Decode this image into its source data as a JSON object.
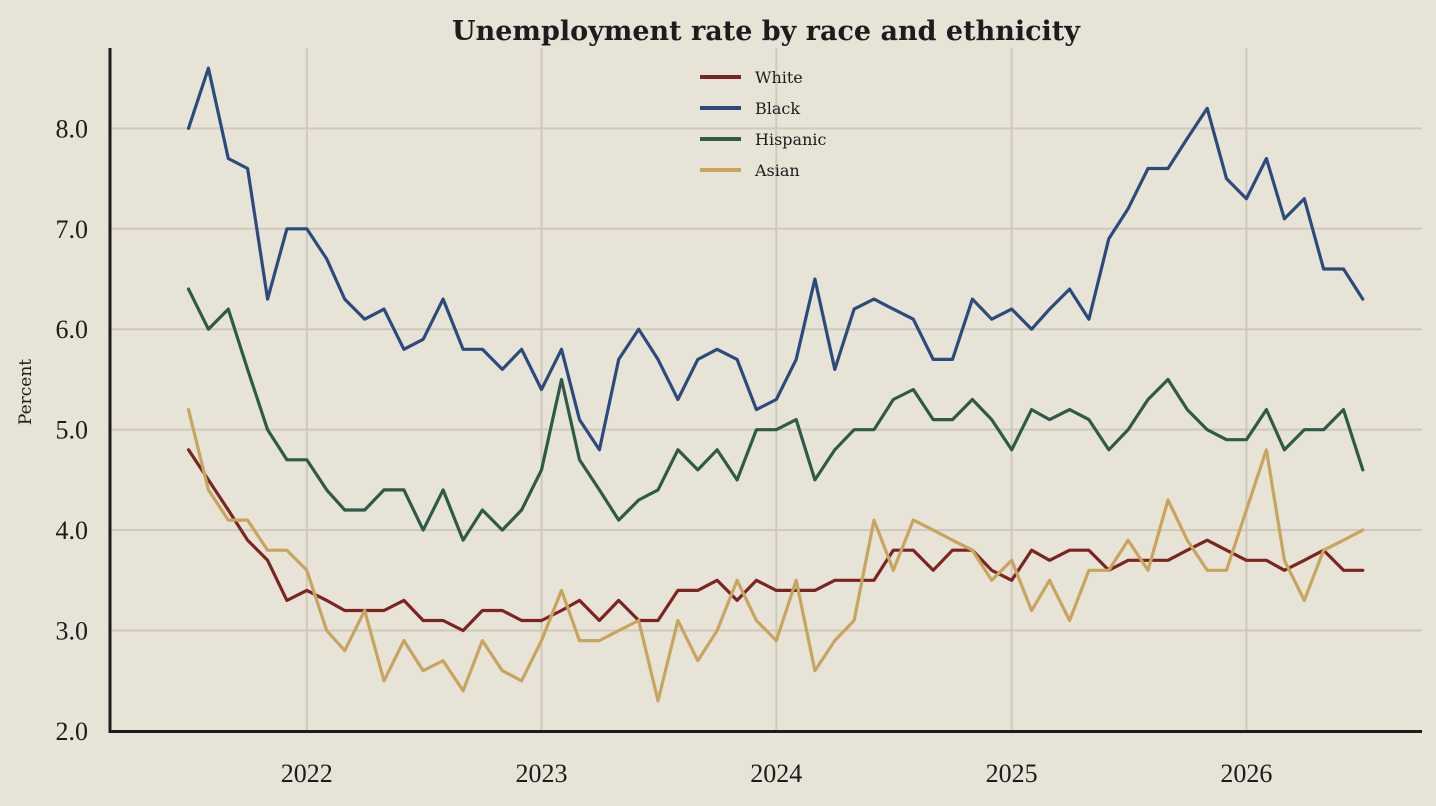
{
  "chart_data": {
    "type": "line",
    "title": "Unemployment rate by race and ethnicity",
    "xlabel": "",
    "ylabel": "Percent",
    "ylim": [
      2.0,
      8.8
    ],
    "xlim": [
      "2021-03-01",
      "2026-10-01"
    ],
    "yticks": [
      "2.0",
      "3.0",
      "4.0",
      "5.0",
      "6.0",
      "7.0",
      "8.0"
    ],
    "xticks": [
      "2022",
      "2023",
      "2024",
      "2025",
      "2026"
    ],
    "grid": true,
    "legend_position": "top-center",
    "start": "2021-07",
    "frequency": "monthly",
    "x": [
      "2021-07",
      "2021-08",
      "2021-09",
      "2021-10",
      "2021-11",
      "2021-12",
      "2022-01",
      "2022-02",
      "2022-03",
      "2022-04",
      "2022-05",
      "2022-06",
      "2022-07",
      "2022-08",
      "2022-09",
      "2022-10",
      "2022-11",
      "2022-12",
      "2023-01",
      "2023-02",
      "2023-03",
      "2023-04",
      "2023-05",
      "2023-06",
      "2023-07",
      "2023-08",
      "2023-09",
      "2023-10",
      "2023-11",
      "2023-12",
      "2024-01",
      "2024-02",
      "2024-03",
      "2024-04",
      "2024-05",
      "2024-06",
      "2024-07",
      "2024-08",
      "2024-09",
      "2024-10",
      "2024-11",
      "2024-12",
      "2025-01",
      "2025-02",
      "2025-03",
      "2025-04",
      "2025-05",
      "2025-06",
      "2025-07",
      "2025-08",
      "2025-09",
      "2025-10",
      "2025-11",
      "2025-12",
      "2026-01",
      "2026-02",
      "2026-03",
      "2026-04",
      "2026-05",
      "2026-06",
      "2026-07"
    ],
    "series": [
      {
        "name": "White",
        "color": "#7b2420",
        "values": [
          4.8,
          4.5,
          4.2,
          3.9,
          3.7,
          3.3,
          3.4,
          3.3,
          3.2,
          3.2,
          3.2,
          3.3,
          3.1,
          3.1,
          3.0,
          3.2,
          3.2,
          3.1,
          3.1,
          3.2,
          3.3,
          3.1,
          3.3,
          3.1,
          3.1,
          3.4,
          3.4,
          3.5,
          3.3,
          3.5,
          3.4,
          3.4,
          3.4,
          3.5,
          3.5,
          3.5,
          3.8,
          3.8,
          3.6,
          3.8,
          3.8,
          3.6,
          3.5,
          3.8,
          3.7,
          3.8,
          3.8,
          3.6,
          3.7,
          3.7,
          3.7,
          3.8,
          3.9,
          3.8,
          3.7,
          3.7,
          3.6,
          3.7,
          3.8,
          3.6,
          3.6
        ]
      },
      {
        "name": "Black",
        "color": "#2d4a7d",
        "values": [
          8.0,
          8.6,
          7.7,
          7.6,
          6.3,
          7.0,
          7.0,
          6.7,
          6.3,
          6.1,
          6.2,
          5.8,
          5.9,
          6.3,
          5.8,
          5.8,
          5.6,
          5.8,
          5.4,
          5.8,
          5.1,
          4.8,
          5.7,
          6.0,
          5.7,
          5.3,
          5.7,
          5.8,
          5.7,
          5.2,
          5.3,
          5.7,
          6.5,
          5.6,
          6.2,
          6.3,
          6.2,
          6.1,
          5.7,
          5.7,
          6.3,
          6.1,
          6.2,
          6.0,
          6.2,
          6.4,
          6.1,
          6.9,
          7.2,
          7.6,
          7.6,
          7.9,
          8.2,
          7.5,
          7.3,
          7.7,
          7.1,
          7.3,
          6.6,
          6.6,
          6.3
        ]
      },
      {
        "name": "Hispanic",
        "color": "#2f5a47",
        "values": [
          6.4,
          6.0,
          6.2,
          5.6,
          5.0,
          4.7,
          4.7,
          4.4,
          4.2,
          4.2,
          4.4,
          4.4,
          4.0,
          4.4,
          3.9,
          4.2,
          4.0,
          4.2,
          4.6,
          5.5,
          4.7,
          4.4,
          4.1,
          4.3,
          4.4,
          4.8,
          4.6,
          4.8,
          4.5,
          5.0,
          5.0,
          5.1,
          4.5,
          4.8,
          5.0,
          5.0,
          5.3,
          5.4,
          5.1,
          5.1,
          5.3,
          5.1,
          4.8,
          5.2,
          5.1,
          5.2,
          5.1,
          4.8,
          5.0,
          5.3,
          5.5,
          5.2,
          5.0,
          4.9,
          4.9,
          5.2,
          4.8,
          5.0,
          5.0,
          5.2,
          4.6
        ]
      },
      {
        "name": "Asian",
        "color": "#c7a55f",
        "values": [
          5.2,
          4.4,
          4.1,
          4.1,
          3.8,
          3.8,
          3.6,
          3.0,
          2.8,
          3.2,
          2.5,
          2.9,
          2.6,
          2.7,
          2.4,
          2.9,
          2.6,
          2.5,
          2.9,
          3.4,
          2.9,
          2.9,
          3.0,
          3.1,
          2.3,
          3.1,
          2.7,
          3.0,
          3.5,
          3.1,
          2.9,
          3.5,
          2.6,
          2.9,
          3.1,
          4.1,
          3.6,
          4.1,
          4.0,
          3.9,
          3.8,
          3.5,
          3.7,
          3.2,
          3.5,
          3.1,
          3.6,
          3.6,
          3.9,
          3.6,
          4.3,
          3.9,
          3.6,
          3.6,
          4.2,
          4.8,
          3.7,
          3.3,
          3.8,
          3.9,
          4.0
        ]
      }
    ]
  }
}
